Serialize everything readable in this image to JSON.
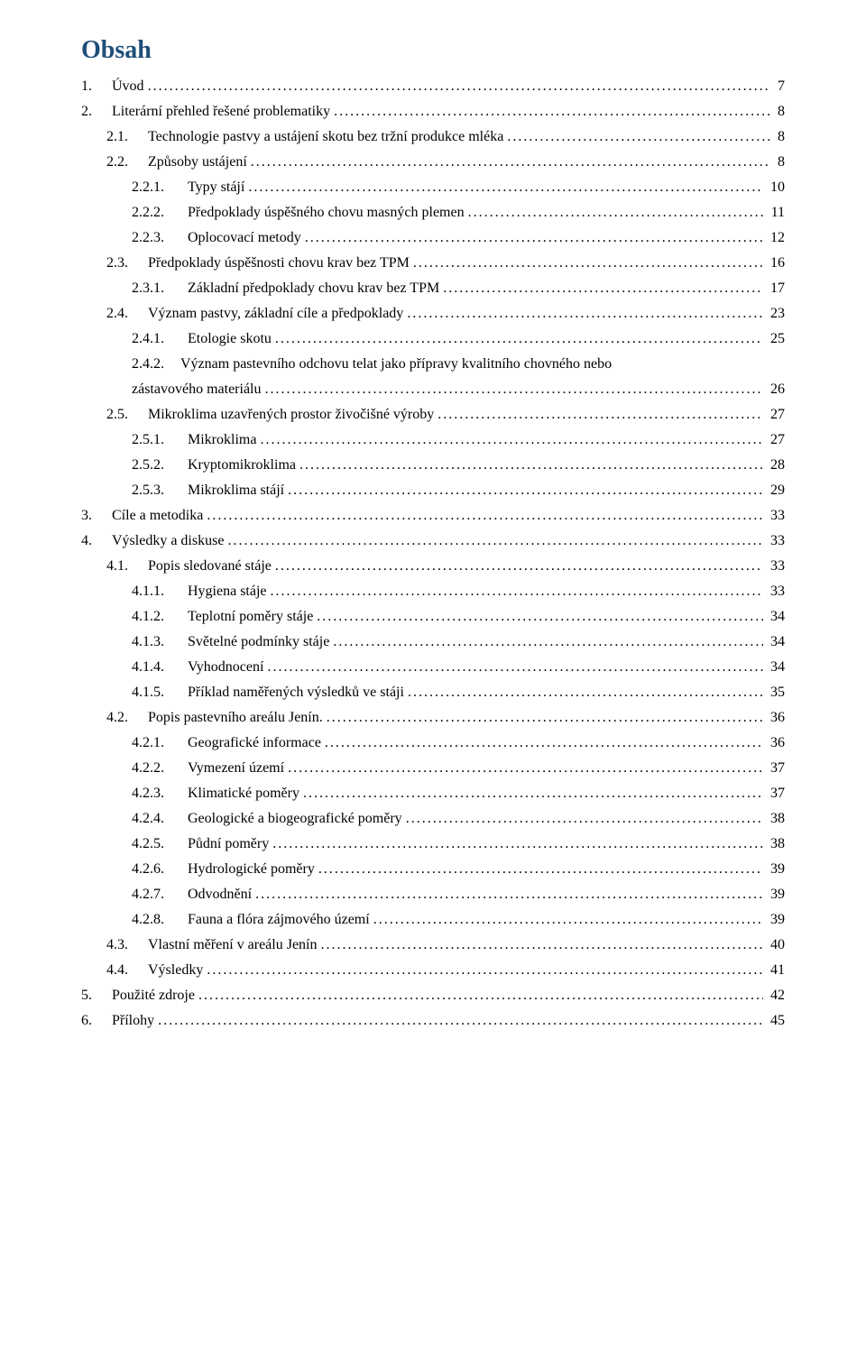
{
  "title": "Obsah",
  "entries": [
    {
      "level": 0,
      "num": "1.",
      "label": "Úvod",
      "page": "7"
    },
    {
      "level": 0,
      "num": "2.",
      "label": "Literární přehled řešené problematiky",
      "page": "8"
    },
    {
      "level": 1,
      "num": "2.1.",
      "label": "Technologie pastvy a ustájení skotu bez tržní produkce mléka",
      "page": "8"
    },
    {
      "level": 1,
      "num": "2.2.",
      "label": "Způsoby ustájení",
      "page": "8"
    },
    {
      "level": 2,
      "num": "2.2.1.",
      "label": "Typy stájí",
      "page": "10"
    },
    {
      "level": 2,
      "num": "2.2.2.",
      "label": "Předpoklady úspěšného chovu masných plemen",
      "page": "11"
    },
    {
      "level": 2,
      "num": "2.2.3.",
      "label": "Oplocovací metody",
      "page": "12"
    },
    {
      "level": 1,
      "num": "2.3.",
      "label": "Předpoklady úspěšnosti chovu krav bez TPM",
      "page": "16"
    },
    {
      "level": 2,
      "num": "2.3.1.",
      "label": "Základní předpoklady chovu krav bez TPM",
      "page": "17"
    },
    {
      "level": 1,
      "num": "2.4.",
      "label": "Význam pastvy, základní cíle a předpoklady",
      "page": "23"
    },
    {
      "level": 2,
      "num": "2.4.1.",
      "label": "Etologie skotu",
      "page": "25"
    },
    {
      "level": 2,
      "num": "2.4.2.",
      "label": "Význam pastevního odchovu telat jako přípravy kvalitního chovného nebo zástavového materiálu",
      "page": "26",
      "wrap": true
    },
    {
      "level": 1,
      "num": "2.5.",
      "label": "Mikroklima uzavřených prostor živočišné výroby",
      "page": "27"
    },
    {
      "level": 2,
      "num": "2.5.1.",
      "label": "Mikroklima",
      "page": "27"
    },
    {
      "level": 2,
      "num": "2.5.2.",
      "label": "Kryptomikroklima",
      "page": "28"
    },
    {
      "level": 2,
      "num": "2.5.3.",
      "label": "Mikroklima stájí",
      "page": "29"
    },
    {
      "level": 0,
      "num": "3.",
      "label": "Cíle a metodika",
      "page": "33"
    },
    {
      "level": 0,
      "num": "4.",
      "label": "Výsledky a diskuse",
      "page": "33"
    },
    {
      "level": 1,
      "num": "4.1.",
      "label": "Popis sledované stáje",
      "page": "33"
    },
    {
      "level": 2,
      "num": "4.1.1.",
      "label": "Hygiena stáje",
      "page": "33"
    },
    {
      "level": 2,
      "num": "4.1.2.",
      "label": "Teplotní poměry stáje",
      "page": "34"
    },
    {
      "level": 2,
      "num": "4.1.3.",
      "label": "Světelné podmínky stáje",
      "page": "34"
    },
    {
      "level": 2,
      "num": "4.1.4.",
      "label": "Vyhodnocení",
      "page": "34"
    },
    {
      "level": 2,
      "num": "4.1.5.",
      "label": "Příklad naměřených výsledků ve stáji",
      "page": "35"
    },
    {
      "level": 1,
      "num": "4.2.",
      "label": "Popis pastevního areálu Jenín.",
      "page": "36"
    },
    {
      "level": 2,
      "num": "4.2.1.",
      "label": "Geografické informace",
      "page": "36"
    },
    {
      "level": 2,
      "num": "4.2.2.",
      "label": "Vymezení území",
      "page": "37"
    },
    {
      "level": 2,
      "num": "4.2.3.",
      "label": "Klimatické poměry",
      "page": "37"
    },
    {
      "level": 2,
      "num": "4.2.4.",
      "label": "Geologické a biogeografické poměry",
      "page": "38"
    },
    {
      "level": 2,
      "num": "4.2.5.",
      "label": "Půdní poměry",
      "page": "38"
    },
    {
      "level": 2,
      "num": "4.2.6.",
      "label": "Hydrologické poměry",
      "page": "39"
    },
    {
      "level": 2,
      "num": "4.2.7.",
      "label": "Odvodnění",
      "page": "39"
    },
    {
      "level": 2,
      "num": "4.2.8.",
      "label": "Fauna a flóra zájmového území",
      "page": "39"
    },
    {
      "level": 1,
      "num": "4.3.",
      "label": "Vlastní měření v areálu Jenín",
      "page": "40"
    },
    {
      "level": 1,
      "num": "4.4.",
      "label": "Výsledky",
      "page": "41"
    },
    {
      "level": 0,
      "num": "5.",
      "label": "Použité zdroje",
      "page": "42"
    },
    {
      "level": 0,
      "num": "6.",
      "label": "Přílohy",
      "page": "45"
    }
  ]
}
